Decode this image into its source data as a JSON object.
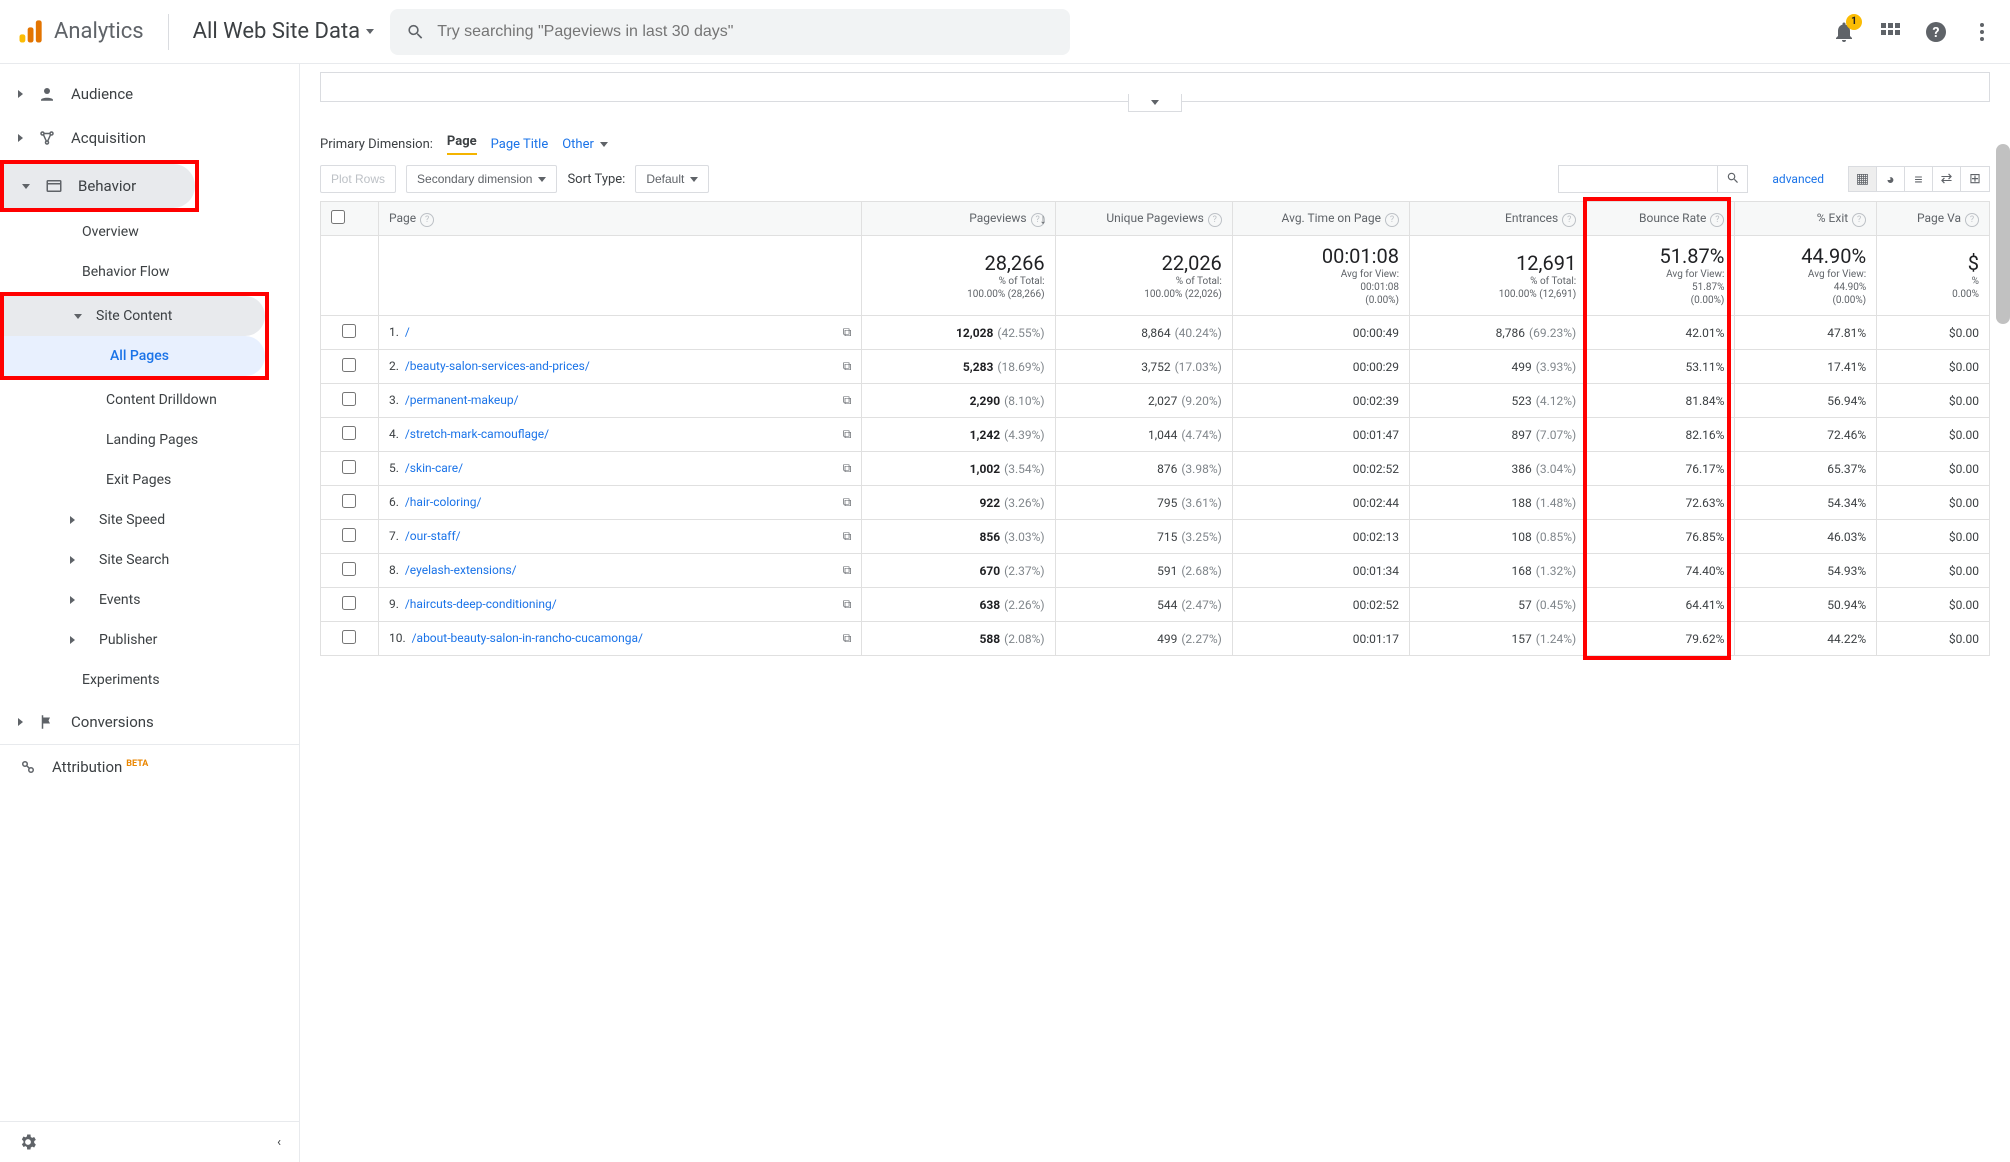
{
  "brand": "Analytics",
  "property": "All Web Site Data",
  "search_placeholder": "Try searching \"Pageviews in last 30 days\"",
  "notification_count": "1",
  "sidebar": {
    "audience": "Audience",
    "acquisition": "Acquisition",
    "behavior": "Behavior",
    "overview": "Overview",
    "behavior_flow": "Behavior Flow",
    "site_content": "Site Content",
    "all_pages": "All Pages",
    "content_drilldown": "Content Drilldown",
    "landing_pages": "Landing Pages",
    "exit_pages": "Exit Pages",
    "site_speed": "Site Speed",
    "site_search": "Site Search",
    "events": "Events",
    "publisher": "Publisher",
    "experiments": "Experiments",
    "conversions": "Conversions",
    "attribution": "Attribution",
    "beta": "BETA"
  },
  "dimension": {
    "label": "Primary Dimension:",
    "page": "Page",
    "page_title": "Page Title",
    "other": "Other"
  },
  "controls": {
    "plot_rows": "Plot Rows",
    "secondary_dim": "Secondary dimension",
    "sort_type": "Sort Type:",
    "sort_default": "Default",
    "advanced": "advanced"
  },
  "columns": {
    "page": "Page",
    "pageviews": "Pageviews",
    "unique_pageviews": "Unique Pageviews",
    "avg_time": "Avg. Time on Page",
    "entrances": "Entrances",
    "bounce_rate": "Bounce Rate",
    "pct_exit": "% Exit",
    "page_value": "Page Va"
  },
  "summary": {
    "pageviews": {
      "big": "28,266",
      "sub1": "% of Total:",
      "sub2": "100.00% (28,266)"
    },
    "unique": {
      "big": "22,026",
      "sub1": "% of Total:",
      "sub2": "100.00% (22,026)"
    },
    "avgtime": {
      "big": "00:01:08",
      "sub1": "Avg for View:",
      "sub2": "00:01:08",
      "sub3": "(0.00%)"
    },
    "entrances": {
      "big": "12,691",
      "sub1": "% of Total:",
      "sub2": "100.00% (12,691)"
    },
    "bounce": {
      "big": "51.87%",
      "sub1": "Avg for View:",
      "sub2": "51.87%",
      "sub3": "(0.00%)"
    },
    "exit": {
      "big": "44.90%",
      "sub1": "Avg for View:",
      "sub2": "44.90%",
      "sub3": "(0.00%)"
    },
    "value": {
      "big": "$",
      "sub1": "%",
      "sub2": "0.00%"
    }
  },
  "rows": [
    {
      "i": "1.",
      "page": "/",
      "pv": "12,028",
      "pv_pct": "(42.55%)",
      "upv": "8,864",
      "upv_pct": "(40.24%)",
      "time": "00:00:49",
      "ent": "8,786",
      "ent_pct": "(69.23%)",
      "br": "42.01%",
      "exit": "47.81%",
      "val": "$0.00"
    },
    {
      "i": "2.",
      "page": "/beauty-salon-services-and-prices/",
      "pv": "5,283",
      "pv_pct": "(18.69%)",
      "upv": "3,752",
      "upv_pct": "(17.03%)",
      "time": "00:00:29",
      "ent": "499",
      "ent_pct": "(3.93%)",
      "br": "53.11%",
      "exit": "17.41%",
      "val": "$0.00"
    },
    {
      "i": "3.",
      "page": "/permanent-makeup/",
      "pv": "2,290",
      "pv_pct": "(8.10%)",
      "upv": "2,027",
      "upv_pct": "(9.20%)",
      "time": "00:02:39",
      "ent": "523",
      "ent_pct": "(4.12%)",
      "br": "81.84%",
      "exit": "56.94%",
      "val": "$0.00"
    },
    {
      "i": "4.",
      "page": "/stretch-mark-camouflage/",
      "pv": "1,242",
      "pv_pct": "(4.39%)",
      "upv": "1,044",
      "upv_pct": "(4.74%)",
      "time": "00:01:47",
      "ent": "897",
      "ent_pct": "(7.07%)",
      "br": "82.16%",
      "exit": "72.46%",
      "val": "$0.00"
    },
    {
      "i": "5.",
      "page": "/skin-care/",
      "pv": "1,002",
      "pv_pct": "(3.54%)",
      "upv": "876",
      "upv_pct": "(3.98%)",
      "time": "00:02:52",
      "ent": "386",
      "ent_pct": "(3.04%)",
      "br": "76.17%",
      "exit": "65.37%",
      "val": "$0.00"
    },
    {
      "i": "6.",
      "page": "/hair-coloring/",
      "pv": "922",
      "pv_pct": "(3.26%)",
      "upv": "795",
      "upv_pct": "(3.61%)",
      "time": "00:02:44",
      "ent": "188",
      "ent_pct": "(1.48%)",
      "br": "72.63%",
      "exit": "54.34%",
      "val": "$0.00"
    },
    {
      "i": "7.",
      "page": "/our-staff/",
      "pv": "856",
      "pv_pct": "(3.03%)",
      "upv": "715",
      "upv_pct": "(3.25%)",
      "time": "00:02:13",
      "ent": "108",
      "ent_pct": "(0.85%)",
      "br": "76.85%",
      "exit": "46.03%",
      "val": "$0.00"
    },
    {
      "i": "8.",
      "page": "/eyelash-extensions/",
      "pv": "670",
      "pv_pct": "(2.37%)",
      "upv": "591",
      "upv_pct": "(2.68%)",
      "time": "00:01:34",
      "ent": "168",
      "ent_pct": "(1.32%)",
      "br": "74.40%",
      "exit": "54.93%",
      "val": "$0.00"
    },
    {
      "i": "9.",
      "page": "/haircuts-deep-conditioning/",
      "pv": "638",
      "pv_pct": "(2.26%)",
      "upv": "544",
      "upv_pct": "(2.47%)",
      "time": "00:02:52",
      "ent": "57",
      "ent_pct": "(0.45%)",
      "br": "64.41%",
      "exit": "50.94%",
      "val": "$0.00"
    },
    {
      "i": "10.",
      "page": "/about-beauty-salon-in-rancho-cucamonga/",
      "pv": "588",
      "pv_pct": "(2.08%)",
      "upv": "499",
      "upv_pct": "(2.27%)",
      "time": "00:01:17",
      "ent": "157",
      "ent_pct": "(1.24%)",
      "br": "79.62%",
      "exit": "44.22%",
      "val": "$0.00"
    }
  ],
  "colors": {
    "highlight": "#ff0000",
    "link": "#1a73e8"
  }
}
